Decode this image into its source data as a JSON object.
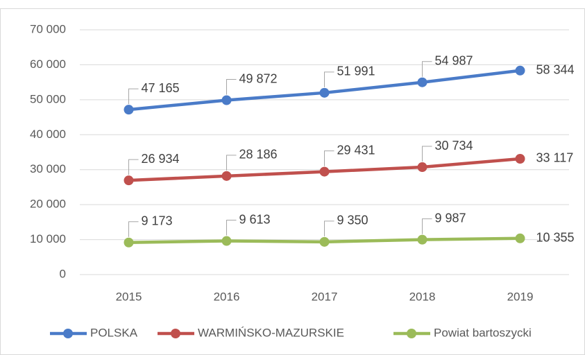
{
  "chart_data": {
    "type": "line",
    "categories": [
      "2015",
      "2016",
      "2017",
      "2018",
      "2019"
    ],
    "series": [
      {
        "name": "POLSKA",
        "color": "#4a7bc8",
        "values": [
          47165,
          49872,
          51991,
          54987,
          58344
        ],
        "value_labels": [
          "47 165",
          "49 872",
          "51 991",
          "54 987",
          "58 344"
        ]
      },
      {
        "name": "WARMIŃSKO-MAZURSKIE",
        "color": "#c0504d",
        "values": [
          26934,
          28186,
          29431,
          30734,
          33117
        ],
        "value_labels": [
          "26 934",
          "28 186",
          "29 431",
          "30 734",
          "33 117"
        ]
      },
      {
        "name": "Powiat bartoszycki",
        "color": "#9bbb59",
        "values": [
          9173,
          9613,
          9350,
          9987,
          10355
        ],
        "value_labels": [
          "9 173",
          "9 613",
          "9 350",
          "9 987",
          "10 355"
        ]
      }
    ],
    "ylim": [
      0,
      70000
    ],
    "yticks": [
      0,
      {
        "value": 10000,
        "label": "10 000"
      },
      {
        "value": 20000,
        "label": "20 000"
      },
      {
        "value": 30000,
        "label": "30 000"
      },
      {
        "value": 40000,
        "label": "40 000"
      },
      {
        "value": 50000,
        "label": "50 000"
      },
      {
        "value": 60000,
        "label": "60 000"
      },
      {
        "value": 70000,
        "label": "70 000"
      }
    ],
    "grid": true,
    "legend": "bottom"
  }
}
